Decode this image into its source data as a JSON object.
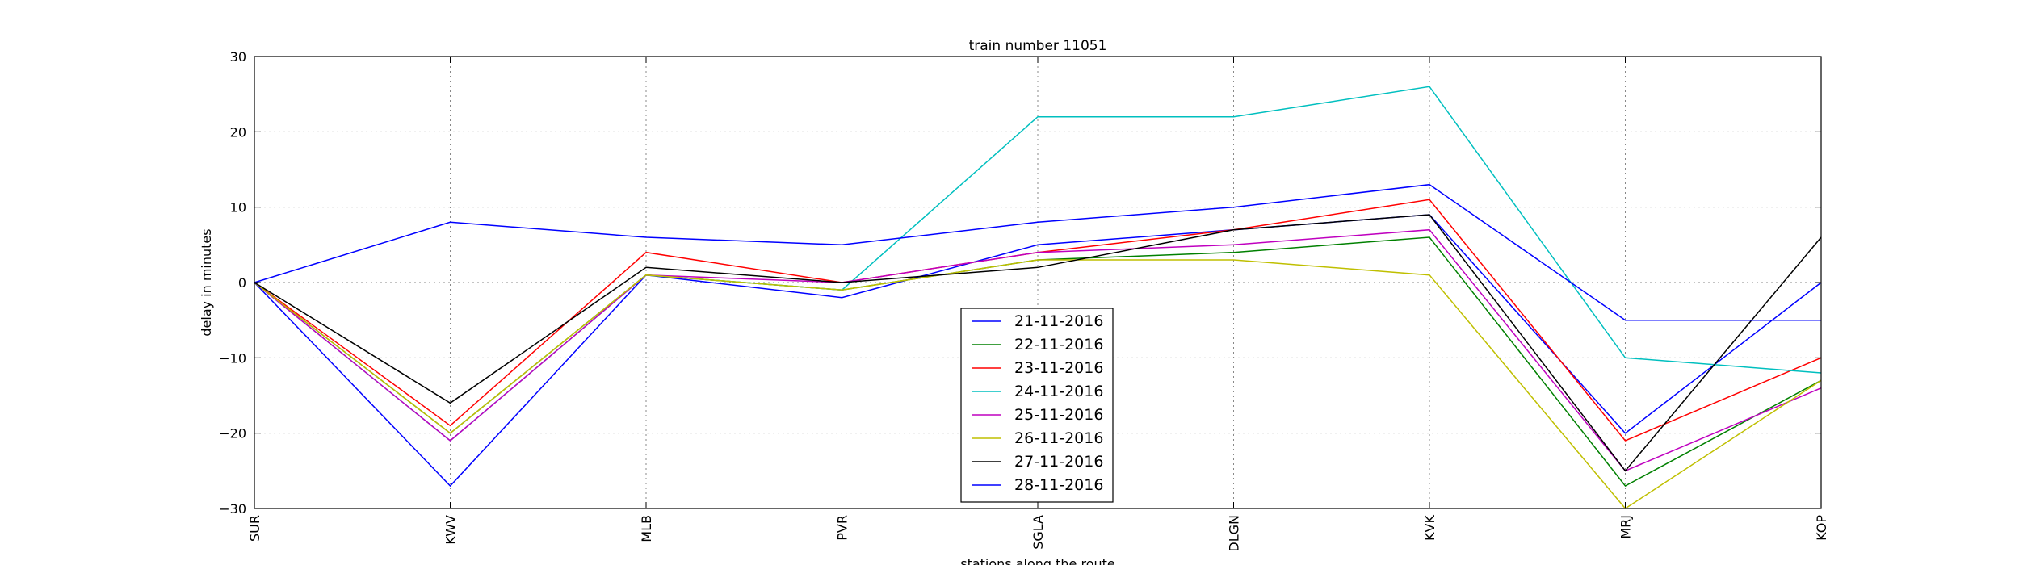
{
  "chart_data": {
    "type": "line",
    "title": "train number 11051",
    "xlabel": "stations along the route",
    "ylabel": "delay in minutes",
    "categories": [
      "SUR",
      "KWV",
      "MLB",
      "PVR",
      "SGLA",
      "DLGN",
      "KVK",
      "MRJ",
      "KOP"
    ],
    "ylim": [
      -30,
      30
    ],
    "yticks": [
      30,
      20,
      10,
      0,
      -10,
      -20,
      -30
    ],
    "ytick_labels": [
      "30",
      "20",
      "10",
      "0",
      "−10",
      "−20",
      "−30"
    ],
    "grid": true,
    "legend_position": "lower-center",
    "series": [
      {
        "name": "21-11-2016",
        "color": "#0000ff",
        "values": [
          0,
          -27,
          1,
          -2,
          5,
          7,
          9,
          -20,
          0
        ]
      },
      {
        "name": "22-11-2016",
        "color": "#008000",
        "values": [
          0,
          -20,
          1,
          -1,
          3,
          4,
          6,
          -27,
          -13
        ]
      },
      {
        "name": "23-11-2016",
        "color": "#ff0000",
        "values": [
          0,
          -19,
          4,
          0,
          4,
          7,
          11,
          -21,
          -10
        ]
      },
      {
        "name": "24-11-2016",
        "color": "#00bfbf",
        "values": [
          0,
          -21,
          1,
          -1,
          22,
          22,
          26,
          -10,
          -12
        ]
      },
      {
        "name": "25-11-2016",
        "color": "#bf00bf",
        "values": [
          0,
          -21,
          1,
          0,
          4,
          5,
          7,
          -25,
          -14
        ]
      },
      {
        "name": "26-11-2016",
        "color": "#bfbf00",
        "values": [
          0,
          -20,
          1,
          -1,
          3,
          3,
          1,
          -30,
          -13
        ]
      },
      {
        "name": "27-11-2016",
        "color": "#000000",
        "values": [
          0,
          -16,
          2,
          0,
          2,
          7,
          9,
          -25,
          6
        ]
      },
      {
        "name": "28-11-2016",
        "color": "#0000ff",
        "values": [
          0,
          8,
          6,
          5,
          8,
          10,
          13,
          -5,
          -5
        ]
      }
    ]
  }
}
